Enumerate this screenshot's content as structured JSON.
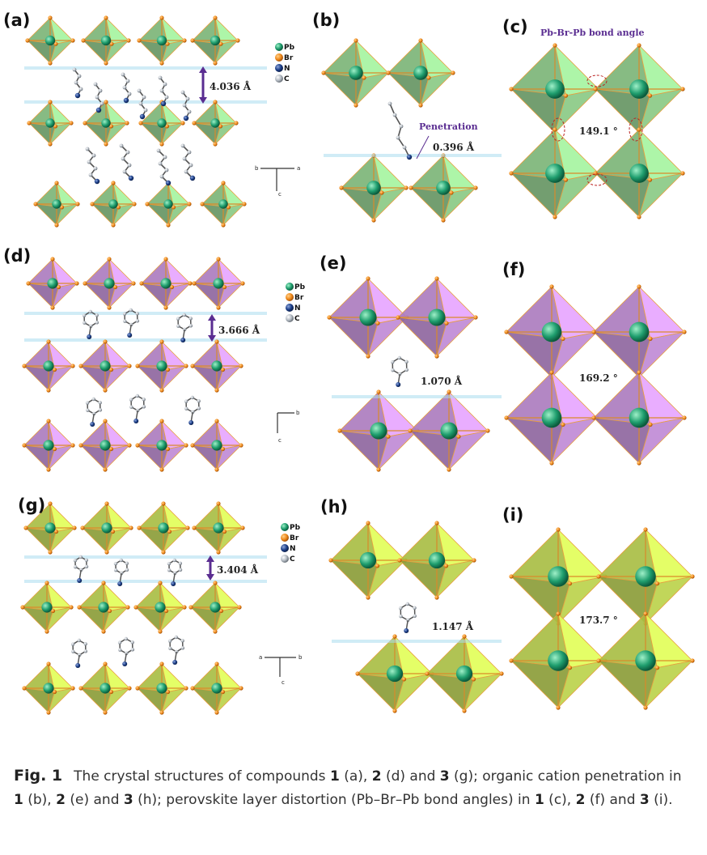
{
  "panels": {
    "a": {
      "label": "(a)",
      "distance": "4.036 Å"
    },
    "b": {
      "label": "(b)",
      "annotation": "Penetration",
      "distance": "0.396 Å"
    },
    "c": {
      "label": "(c)",
      "title": "Pb-Br-Pb bond angle",
      "angle": "149.1 °"
    },
    "d": {
      "label": "(d)",
      "distance": "3.666 Å"
    },
    "e": {
      "label": "(e)",
      "distance": "1.070 Å"
    },
    "f": {
      "label": "(f)",
      "angle": "169.2 °"
    },
    "g": {
      "label": "(g)",
      "distance": "3.404 Å"
    },
    "h": {
      "label": "(h)",
      "distance": "1.147 Å"
    },
    "i": {
      "label": "(i)",
      "angle": "173.7 °"
    }
  },
  "legend": [
    {
      "label": "Pb",
      "color": "#1f9e6e"
    },
    {
      "label": "Br",
      "color": "#f08a1c"
    },
    {
      "label": "N",
      "color": "#1d3f8a"
    },
    {
      "label": "C",
      "color": "#9aa3ad"
    }
  ],
  "axes": {
    "row1": {
      "h_left": "b",
      "h_right": "a",
      "v": "c"
    },
    "row2": {
      "h_right": "b",
      "v": "c"
    },
    "row3": {
      "h_left": "a",
      "h_right": "b",
      "v": "c"
    }
  },
  "colors": {
    "row1": "#8fd48a",
    "row2": "#c98fe0",
    "row3": "#c4dd4c",
    "plane": "#a9dcef"
  },
  "caption": {
    "fig_label": "Fig. 1",
    "t1": "The crystal structures of compounds ",
    "n1": "1",
    "t2": " (a), ",
    "n2": "2",
    "t3": " (d) and ",
    "n3": "3",
    "t4": " (g); organic cation penetration in ",
    "n4": "1",
    "t5": " (b), ",
    "n5": "2",
    "t6": " (e) and ",
    "n6": "3",
    "t7": " (h); perovskite layer distortion (Pb–Br–Pb bond angles) in ",
    "n7": "1",
    "t8": " (c), ",
    "n8": "2",
    "t9": " (f) and ",
    "n9": "3",
    "t10": " (i)."
  }
}
